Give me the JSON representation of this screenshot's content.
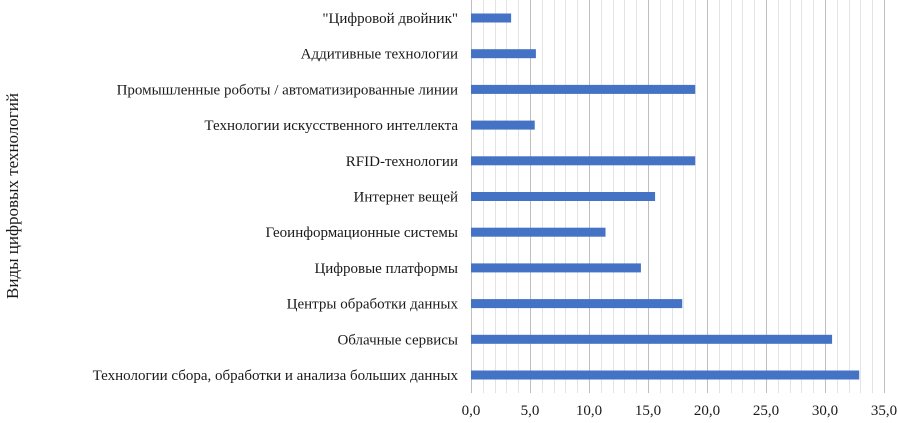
{
  "chart_data": {
    "type": "bar",
    "orientation": "horizontal",
    "title": "",
    "xlabel": "",
    "ylabel": "Виды цифровых технологий",
    "xlim": [
      0,
      35
    ],
    "x_ticks": [
      "0,0",
      "5,0",
      "10,0",
      "15,0",
      "20,0",
      "25,0",
      "30,0",
      "35,0"
    ],
    "minor_grid_step": 1,
    "grid": true,
    "bar_color": "#4472C4",
    "categories": [
      "\"Цифровой двойник\"",
      "Аддитивные технологии",
      "Промышленные роботы / автоматизированные линии",
      "Технологии искусственного интеллекта",
      "RFID-технологии ",
      "Интернет вещей",
      "Геоинформационные системы",
      "Цифровые платформы",
      "Центры обработки данных",
      "Облачные сервисы",
      "Технологии сбора, обработки и анализа больших данных"
    ],
    "values": [
      3.4,
      5.5,
      19.0,
      5.4,
      19.0,
      15.6,
      11.4,
      14.4,
      17.9,
      30.6,
      32.9
    ]
  }
}
